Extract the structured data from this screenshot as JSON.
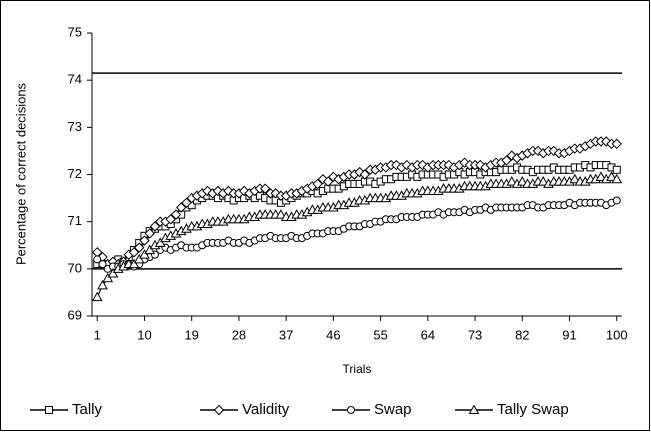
{
  "chart_data": {
    "type": "line",
    "y_label": "Percentage of correct decisions",
    "x_label": "Trials",
    "x": [
      1,
      2,
      3,
      4,
      5,
      6,
      7,
      8,
      9,
      10,
      11,
      12,
      13,
      14,
      15,
      16,
      17,
      18,
      19,
      20,
      21,
      22,
      23,
      24,
      25,
      26,
      27,
      28,
      29,
      30,
      31,
      32,
      33,
      34,
      35,
      36,
      37,
      38,
      39,
      40,
      41,
      42,
      43,
      44,
      45,
      46,
      47,
      48,
      49,
      50,
      51,
      52,
      53,
      54,
      55,
      56,
      57,
      58,
      59,
      60,
      61,
      62,
      63,
      64,
      65,
      66,
      67,
      68,
      69,
      70,
      71,
      72,
      73,
      74,
      75,
      76,
      77,
      78,
      79,
      80,
      81,
      82,
      83,
      84,
      85,
      86,
      87,
      88,
      89,
      90,
      91,
      92,
      93,
      94,
      95,
      96,
      97,
      98,
      99,
      100
    ],
    "xlim": [
      0,
      101
    ],
    "xticks": [
      1,
      10,
      19,
      28,
      37,
      46,
      55,
      64,
      73,
      82,
      91,
      100
    ],
    "ylim": [
      69,
      75
    ],
    "yticks": [
      69,
      70,
      71,
      72,
      73,
      74,
      75
    ],
    "reference_lines": [
      74.15,
      70
    ],
    "series": [
      {
        "name": "Tally",
        "marker": "square",
        "color": "#000000",
        "values": [
          70.1,
          70.1,
          70.05,
          70.1,
          70.2,
          70.15,
          70.25,
          70.4,
          70.55,
          70.7,
          70.8,
          70.85,
          70.9,
          70.9,
          70.95,
          71.05,
          71.15,
          71.3,
          71.35,
          71.45,
          71.5,
          71.55,
          71.55,
          71.5,
          71.55,
          71.5,
          71.45,
          71.5,
          71.5,
          71.55,
          71.5,
          71.55,
          71.5,
          71.45,
          71.45,
          71.4,
          71.45,
          71.5,
          71.55,
          71.6,
          71.6,
          71.65,
          71.6,
          71.65,
          71.7,
          71.7,
          71.7,
          71.75,
          71.8,
          71.8,
          71.8,
          71.85,
          71.85,
          71.8,
          71.85,
          71.9,
          71.9,
          71.95,
          71.95,
          71.95,
          72.0,
          71.95,
          72.0,
          72.0,
          72.0,
          72.0,
          71.95,
          72.0,
          72.0,
          72.05,
          72.0,
          72.05,
          72.05,
          72.0,
          72.05,
          72.05,
          72.05,
          72.1,
          72.1,
          72.1,
          72.15,
          72.1,
          72.1,
          72.05,
          72.1,
          72.1,
          72.1,
          72.15,
          72.1,
          72.1,
          72.1,
          72.15,
          72.15,
          72.2,
          72.15,
          72.2,
          72.2,
          72.2,
          72.15,
          72.1
        ]
      },
      {
        "name": "Validity",
        "marker": "diamond",
        "color": "#000000",
        "values": [
          70.35,
          70.25,
          70.1,
          70.15,
          70.1,
          70.15,
          70.3,
          70.35,
          70.45,
          70.6,
          70.75,
          70.9,
          71.0,
          71.0,
          71.05,
          71.15,
          71.3,
          71.4,
          71.5,
          71.55,
          71.6,
          71.65,
          71.6,
          71.65,
          71.6,
          71.65,
          71.6,
          71.6,
          71.65,
          71.6,
          71.65,
          71.7,
          71.7,
          71.6,
          71.6,
          71.55,
          71.55,
          71.6,
          71.6,
          71.65,
          71.7,
          71.75,
          71.8,
          71.9,
          71.85,
          71.95,
          71.9,
          71.95,
          72.0,
          72.0,
          72.05,
          72.0,
          72.1,
          72.1,
          72.15,
          72.15,
          72.2,
          72.2,
          72.15,
          72.2,
          72.15,
          72.2,
          72.2,
          72.15,
          72.2,
          72.2,
          72.2,
          72.2,
          72.15,
          72.2,
          72.25,
          72.2,
          72.2,
          72.2,
          72.15,
          72.2,
          72.25,
          72.25,
          72.3,
          72.4,
          72.35,
          72.4,
          72.45,
          72.5,
          72.5,
          72.45,
          72.5,
          72.5,
          72.45,
          72.45,
          72.5,
          72.55,
          72.55,
          72.6,
          72.65,
          72.7,
          72.7,
          72.7,
          72.65,
          72.65
        ]
      },
      {
        "name": "Swap",
        "marker": "circle",
        "color": "#000000",
        "values": [
          70.2,
          70.1,
          70.0,
          70.05,
          70.05,
          70.1,
          70.1,
          70.05,
          70.1,
          70.2,
          70.25,
          70.3,
          70.4,
          70.45,
          70.4,
          70.45,
          70.5,
          70.45,
          70.45,
          70.45,
          70.5,
          70.55,
          70.55,
          70.55,
          70.55,
          70.6,
          70.55,
          70.55,
          70.6,
          70.55,
          70.6,
          70.65,
          70.65,
          70.7,
          70.65,
          70.65,
          70.65,
          70.7,
          70.65,
          70.65,
          70.7,
          70.75,
          70.75,
          70.75,
          70.8,
          70.8,
          70.8,
          70.85,
          70.9,
          70.9,
          70.9,
          70.95,
          70.95,
          71.0,
          71.0,
          71.05,
          71.05,
          71.05,
          71.1,
          71.1,
          71.1,
          71.1,
          71.15,
          71.15,
          71.15,
          71.2,
          71.15,
          71.2,
          71.2,
          71.2,
          71.25,
          71.2,
          71.25,
          71.25,
          71.3,
          71.25,
          71.3,
          71.3,
          71.3,
          71.3,
          71.3,
          71.3,
          71.35,
          71.35,
          71.3,
          71.3,
          71.35,
          71.35,
          71.35,
          71.35,
          71.4,
          71.35,
          71.4,
          71.4,
          71.4,
          71.4,
          71.4,
          71.35,
          71.4,
          71.45
        ]
      },
      {
        "name": "Tally Swap",
        "marker": "triangle",
        "color": "#000000",
        "values": [
          69.4,
          69.65,
          69.8,
          69.9,
          70.0,
          70.05,
          70.1,
          70.1,
          70.2,
          70.3,
          70.4,
          70.5,
          70.55,
          70.65,
          70.7,
          70.75,
          70.8,
          70.85,
          70.9,
          70.9,
          70.95,
          70.95,
          71.0,
          71.0,
          71.0,
          71.05,
          71.05,
          71.05,
          71.05,
          71.1,
          71.1,
          71.15,
          71.15,
          71.15,
          71.15,
          71.15,
          71.1,
          71.1,
          71.15,
          71.15,
          71.2,
          71.25,
          71.25,
          71.3,
          71.3,
          71.3,
          71.35,
          71.35,
          71.4,
          71.4,
          71.45,
          71.45,
          71.5,
          71.5,
          71.5,
          71.5,
          71.55,
          71.55,
          71.55,
          71.6,
          71.6,
          71.6,
          71.65,
          71.65,
          71.65,
          71.65,
          71.7,
          71.7,
          71.7,
          71.7,
          71.75,
          71.75,
          71.75,
          71.75,
          71.75,
          71.8,
          71.8,
          71.8,
          71.8,
          71.85,
          71.8,
          71.85,
          71.8,
          71.8,
          71.85,
          71.85,
          71.8,
          71.85,
          71.85,
          71.85,
          71.85,
          71.9,
          71.85,
          71.85,
          71.9,
          71.9,
          71.95,
          71.9,
          71.95,
          71.9
        ]
      }
    ]
  }
}
